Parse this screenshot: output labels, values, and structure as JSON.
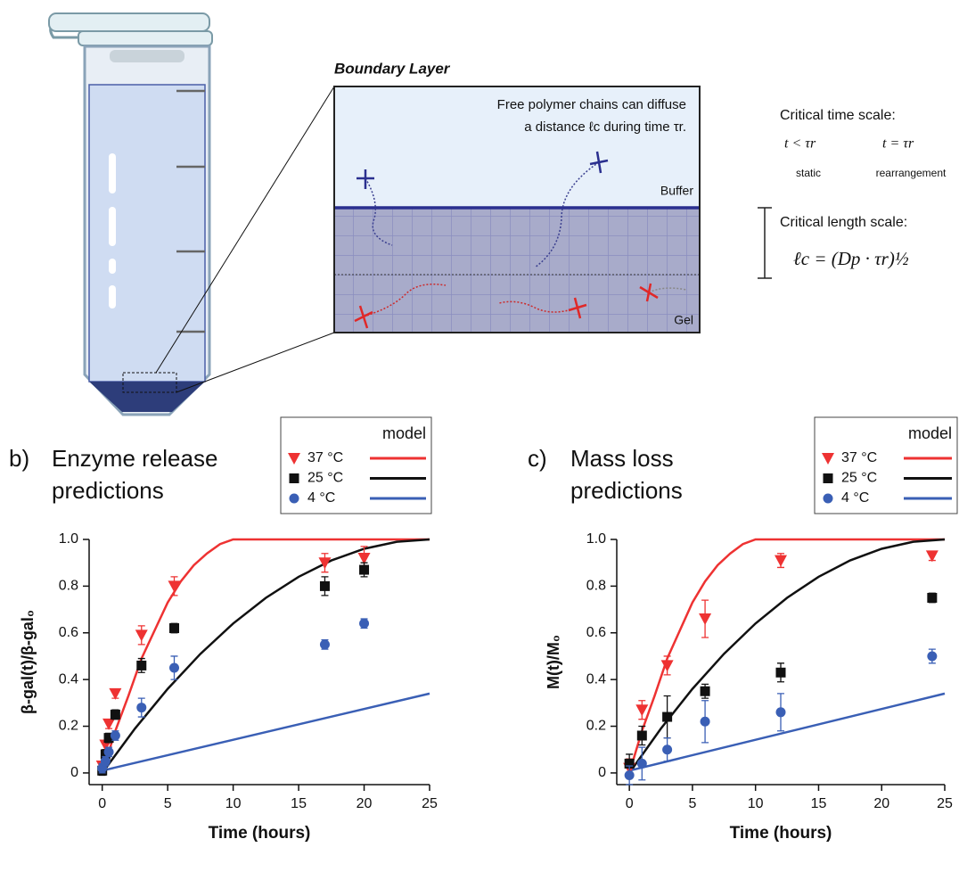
{
  "diagram": {
    "boundary_title": "Boundary Layer",
    "note": [
      "Free polymer chains can diffuse",
      "a distance ℓc during time τr."
    ],
    "buffer": "Buffer",
    "gel": "Gel",
    "time_title": "Critical time scale:",
    "time_cases": [
      "t < τr",
      "t = τr"
    ],
    "time_regimes": [
      "static",
      "rearrangement"
    ],
    "length_title": "Critical length scale:",
    "length_formula": "ℓc = (Dp · τr)½"
  },
  "chart_data": [
    {
      "type": "scatter",
      "panel": "b)",
      "title": "Enzyme release predictions",
      "x_label": "Time (hours)",
      "y_label": "β-gal(t)/β-gal₀",
      "legend_title": "model",
      "xlim": [
        -1,
        25
      ],
      "xticks": [
        0,
        5,
        10,
        15,
        20,
        25
      ],
      "ylim": [
        -0.05,
        1.0
      ],
      "yticks": [
        0,
        0.2,
        0.4,
        0.6,
        0.8,
        {
          "value": 1,
          "label": "1.0"
        }
      ],
      "series": [
        {
          "name": "37 °C",
          "color": "#ee3232",
          "marker": "triangle",
          "x": [
            0,
            0.25,
            0.5,
            1,
            3,
            5.5,
            17,
            20
          ],
          "values": [
            0.03,
            0.12,
            0.21,
            0.34,
            0.59,
            0.8,
            0.9,
            0.92
          ],
          "errors": [
            0.02,
            0.02,
            0.02,
            0.02,
            0.04,
            0.04,
            0.04,
            0.05
          ],
          "model_x": [
            0,
            1,
            2,
            3,
            4,
            5,
            6,
            7,
            8,
            9,
            10,
            10.5,
            25
          ],
          "model_values": [
            0,
            0.18,
            0.33,
            0.49,
            0.61,
            0.73,
            0.82,
            0.89,
            0.94,
            0.98,
            1.0,
            1.0,
            1.0
          ]
        },
        {
          "name": "25 °C",
          "color": "#111111",
          "marker": "square",
          "x": [
            0,
            0.25,
            0.5,
            1,
            3,
            5.5,
            17,
            20
          ],
          "values": [
            0.01,
            0.08,
            0.15,
            0.25,
            0.46,
            0.62,
            0.8,
            0.87
          ],
          "errors": [
            0.02,
            0.02,
            0.02,
            0.02,
            0.03,
            0.02,
            0.04,
            0.03
          ],
          "model_x": [
            0,
            2.5,
            5,
            7.5,
            10,
            12.5,
            15,
            17.5,
            20,
            22.5,
            25
          ],
          "model_values": [
            0,
            0.19,
            0.36,
            0.51,
            0.64,
            0.75,
            0.84,
            0.91,
            0.96,
            0.99,
            1.0
          ]
        },
        {
          "name": "4 °C",
          "color": "#3a5fb5",
          "marker": "circle",
          "x": [
            0,
            0.25,
            0.5,
            1,
            3,
            5.5,
            17,
            20
          ],
          "values": [
            0.02,
            0.05,
            0.09,
            0.16,
            0.28,
            0.45,
            0.55,
            0.64
          ],
          "errors": [
            0.02,
            0.02,
            0.02,
            0.02,
            0.04,
            0.05,
            0.02,
            0.02
          ],
          "model_x": [
            0,
            25
          ],
          "model_values": [
            0.01,
            0.34
          ]
        }
      ]
    },
    {
      "type": "scatter",
      "panel": "c)",
      "title": "Mass loss predictions",
      "x_label": "Time (hours)",
      "y_label": "M(t)/M₀",
      "legend_title": "model",
      "xlim": [
        -1,
        25
      ],
      "xticks": [
        0,
        5,
        10,
        15,
        20,
        25
      ],
      "ylim": [
        -0.05,
        1.0
      ],
      "yticks": [
        0,
        0.2,
        0.4,
        0.6,
        0.8,
        {
          "value": 1,
          "label": "1.0"
        }
      ],
      "series": [
        {
          "name": "37 °C",
          "color": "#ee3232",
          "marker": "triangle",
          "x": [
            0,
            1,
            3,
            6,
            12,
            24
          ],
          "values": [
            0.02,
            0.27,
            0.46,
            0.66,
            0.91,
            0.93
          ],
          "errors": [
            0.04,
            0.04,
            0.04,
            0.08,
            0.03,
            0.02
          ],
          "model_x": [
            0,
            1,
            2,
            3,
            4,
            5,
            6,
            7,
            8,
            9,
            10,
            10.5,
            25
          ],
          "model_values": [
            0,
            0.18,
            0.33,
            0.49,
            0.61,
            0.73,
            0.82,
            0.89,
            0.94,
            0.98,
            1.0,
            1.0,
            1.0
          ]
        },
        {
          "name": "25 °C",
          "color": "#111111",
          "marker": "square",
          "x": [
            0,
            1,
            3,
            6,
            12,
            24
          ],
          "values": [
            0.04,
            0.16,
            0.24,
            0.35,
            0.43,
            0.75
          ],
          "errors": [
            0.04,
            0.04,
            0.09,
            0.03,
            0.04,
            0.02
          ],
          "model_x": [
            0,
            2.5,
            5,
            7.5,
            10,
            12.5,
            15,
            17.5,
            20,
            22.5,
            25
          ],
          "model_values": [
            0,
            0.19,
            0.36,
            0.51,
            0.64,
            0.75,
            0.84,
            0.91,
            0.96,
            0.99,
            1.0
          ]
        },
        {
          "name": "4 °C",
          "color": "#3a5fb5",
          "marker": "circle",
          "x": [
            0,
            1,
            3,
            6,
            12,
            24
          ],
          "values": [
            -0.01,
            0.04,
            0.1,
            0.22,
            0.26,
            0.5
          ],
          "errors": [
            0.04,
            0.07,
            0.05,
            0.09,
            0.08,
            0.03
          ],
          "model_x": [
            0,
            25
          ],
          "model_values": [
            0.01,
            0.34
          ]
        }
      ]
    }
  ]
}
